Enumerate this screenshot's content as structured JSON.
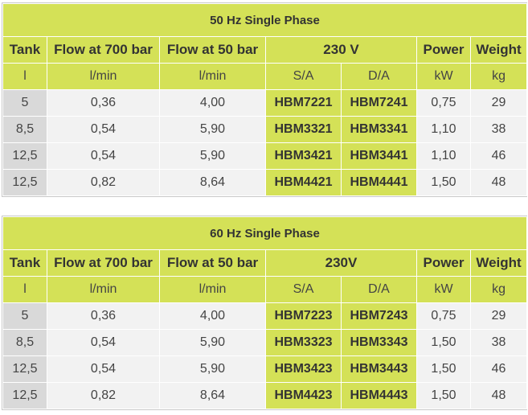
{
  "tables": [
    {
      "title": "50 Hz Single Phase",
      "headers": {
        "tank": "Tank",
        "flow700": "Flow at 700 bar",
        "flow50": "Flow at 50 bar",
        "voltage": "230 V",
        "power": "Power",
        "weight": "Weight"
      },
      "units": {
        "tank": "l",
        "flow700": "l/min",
        "flow50": "l/min",
        "sa": "S/A",
        "da": "D/A",
        "power": "kW",
        "weight": "kg"
      },
      "rows": [
        {
          "tank": "5",
          "flow700": "0,36",
          "flow50": "4,00",
          "sa": "HBM7221",
          "da": "HBM7241",
          "power": "0,75",
          "weight": "29"
        },
        {
          "tank": "8,5",
          "flow700": "0,54",
          "flow50": "5,90",
          "sa": "HBM3321",
          "da": "HBM3341",
          "power": "1,10",
          "weight": "38"
        },
        {
          "tank": "12,5",
          "flow700": "0,54",
          "flow50": "5,90",
          "sa": "HBM3421",
          "da": "HBM3441",
          "power": "1,10",
          "weight": "46"
        },
        {
          "tank": "12,5",
          "flow700": "0,82",
          "flow50": "8,64",
          "sa": "HBM4421",
          "da": "HBM4441",
          "power": "1,50",
          "weight": "48"
        }
      ]
    },
    {
      "title": "60 Hz Single Phase",
      "headers": {
        "tank": "Tank",
        "flow700": "Flow at 700 bar",
        "flow50": "Flow at 50 bar",
        "voltage": "230V",
        "power": "Power",
        "weight": "Weight"
      },
      "units": {
        "tank": "l",
        "flow700": "l/min",
        "flow50": "l/min",
        "sa": "S/A",
        "da": "D/A",
        "power": "kW",
        "weight": "kg"
      },
      "rows": [
        {
          "tank": "5",
          "flow700": "0,36",
          "flow50": "4,00",
          "sa": "HBM7223",
          "da": "HBM7243",
          "power": "0,75",
          "weight": "29"
        },
        {
          "tank": "8,5",
          "flow700": "0,54",
          "flow50": "5,90",
          "sa": "HBM3323",
          "da": "HBM3343",
          "power": "1,50",
          "weight": "38"
        },
        {
          "tank": "12,5",
          "flow700": "0,54",
          "flow50": "5,90",
          "sa": "HBM3423",
          "da": "HBM3443",
          "power": "1,50",
          "weight": "46"
        },
        {
          "tank": "12,5",
          "flow700": "0,82",
          "flow50": "8,64",
          "sa": "HBM4423",
          "da": "HBM4443",
          "power": "1,50",
          "weight": "48"
        }
      ]
    }
  ],
  "colors": {
    "accent_lime": "#d4e157",
    "row_light": "#f2f2f2",
    "tank_grey": "#d9d9d9"
  }
}
